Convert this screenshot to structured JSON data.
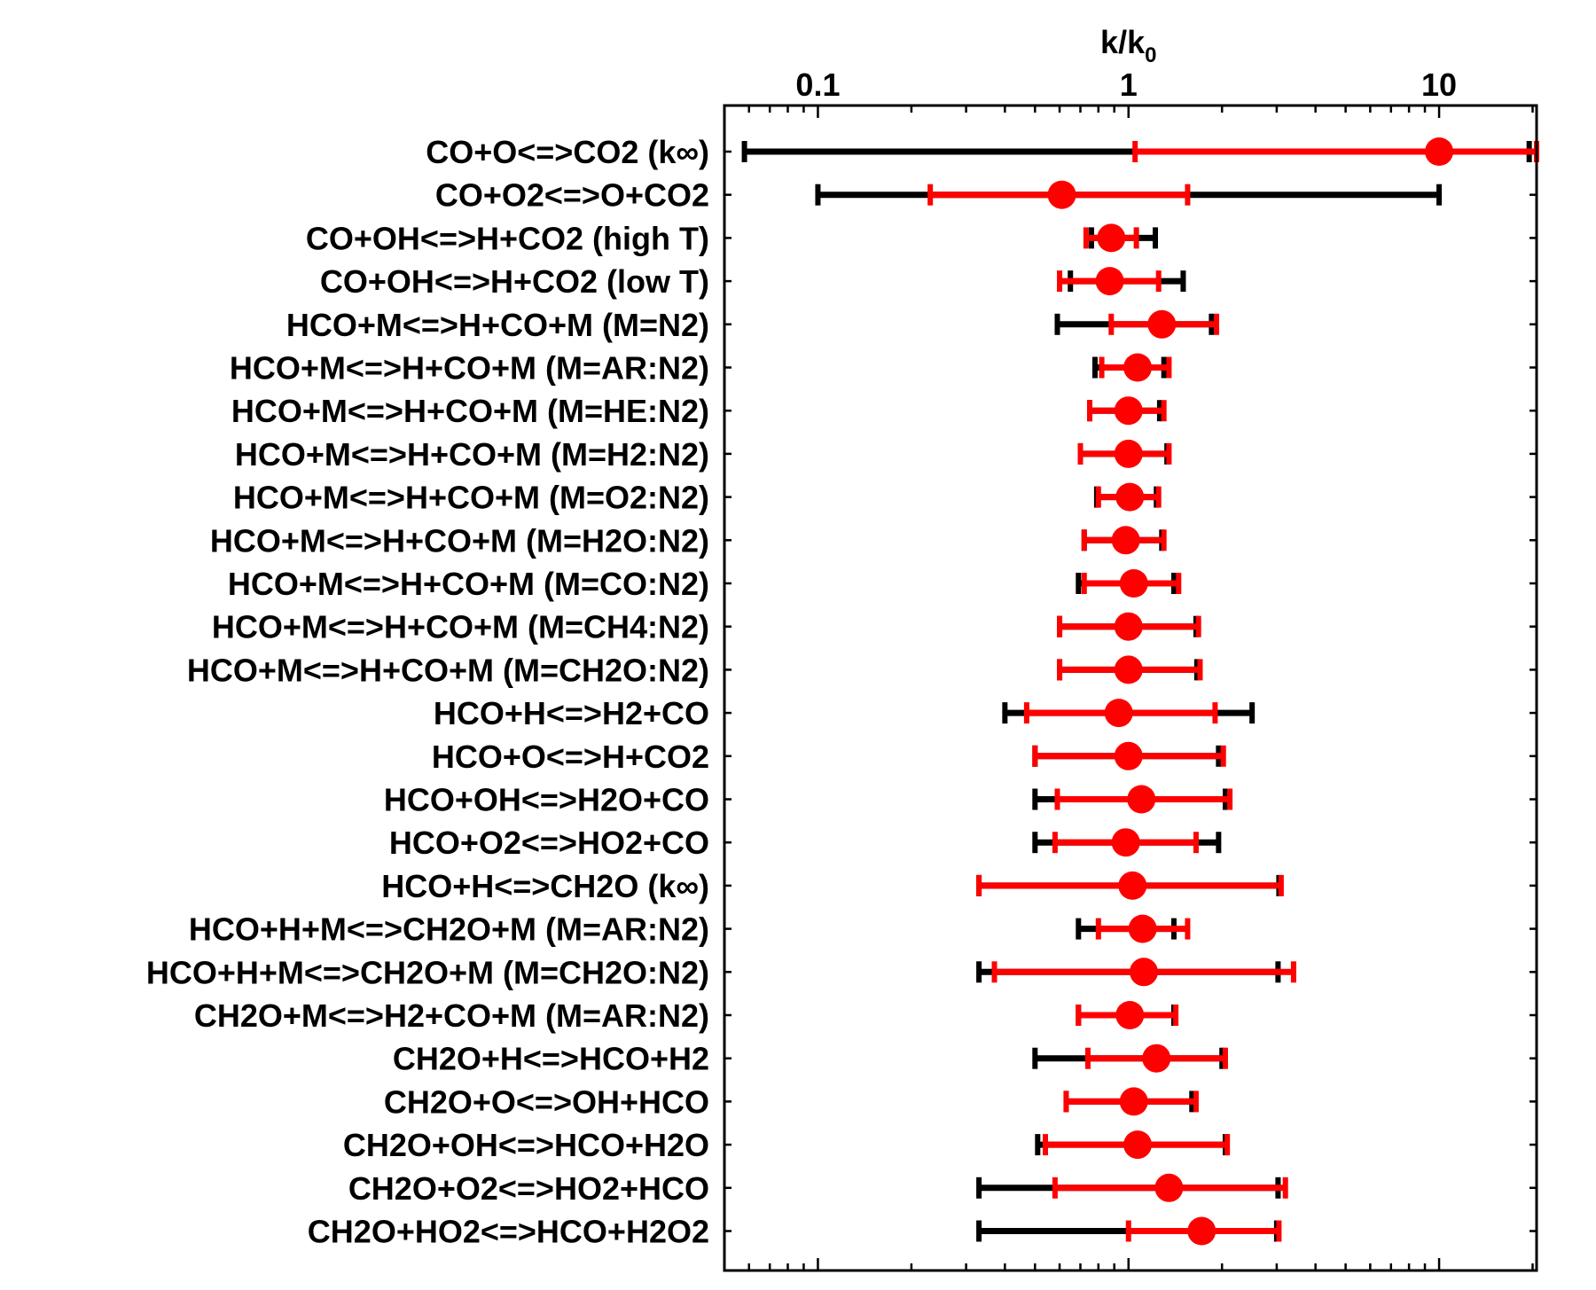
{
  "chart_data": {
    "type": "scatter",
    "title": "",
    "xlabel": "k/k",
    "xlabel_subscript": "0",
    "x_scale": "log",
    "xlim": [
      0.05,
      20.6
    ],
    "x_ticks": [
      0.1,
      1,
      10
    ],
    "x_tick_labels": [
      "0.1",
      "1",
      "10"
    ],
    "x_axis_position": "top",
    "grid": false,
    "colors": {
      "black_range": "#000000",
      "red_range": "#ff0000",
      "point": "#ff0000"
    },
    "categories": [
      "CO+O<=>CO2 (k∞)",
      "CO+O2<=>O+CO2",
      "CO+OH<=>H+CO2 (high T)",
      "CO+OH<=>H+CO2 (low T)",
      "HCO+M<=>H+CO+M (M=N2)",
      "HCO+M<=>H+CO+M (M=AR:N2)",
      "HCO+M<=>H+CO+M (M=HE:N2)",
      "HCO+M<=>H+CO+M (M=H2:N2)",
      "HCO+M<=>H+CO+M (M=O2:N2)",
      "HCO+M<=>H+CO+M (M=H2O:N2)",
      "HCO+M<=>H+CO+M (M=CO:N2)",
      "HCO+M<=>H+CO+M (M=CH4:N2)",
      "HCO+M<=>H+CO+M (M=CH2O:N2)",
      "HCO+H<=>H2+CO",
      "HCO+O<=>H+CO2",
      "HCO+OH<=>H2O+CO",
      "HCO+O2<=>HO2+CO",
      "HCO+H<=>CH2O (k∞)",
      "HCO+H+M<=>CH2O+M (M=AR:N2)",
      "HCO+H+M<=>CH2O+M (M=CH2O:N2)",
      "CH2O+M<=>H2+CO+M (M=AR:N2)",
      "CH2O+H<=>HCO+H2",
      "CH2O+O<=>OH+HCO",
      "CH2O+OH<=>HCO+H2O",
      "CH2O+O2<=>HO2+HCO",
      "CH2O+HO2<=>HCO+H2O2"
    ],
    "series": [
      {
        "role": "black_range",
        "low": [
          0.058,
          0.1,
          0.76,
          0.65,
          0.59,
          0.78,
          0.75,
          0.7,
          0.79,
          0.72,
          0.69,
          0.6,
          0.6,
          0.4,
          0.5,
          0.5,
          0.5,
          0.33,
          0.69,
          0.33,
          0.69,
          0.5,
          0.63,
          0.51,
          0.33,
          0.33
        ],
        "high": [
          19.5,
          10.0,
          1.22,
          1.5,
          1.85,
          1.3,
          1.26,
          1.33,
          1.23,
          1.28,
          1.4,
          1.65,
          1.66,
          2.5,
          1.95,
          2.05,
          1.95,
          3.05,
          1.4,
          3.03,
          1.4,
          2.0,
          1.6,
          2.05,
          3.03,
          3.0
        ]
      },
      {
        "role": "red_range",
        "low": [
          1.05,
          0.23,
          0.73,
          0.6,
          0.88,
          0.82,
          0.75,
          0.7,
          0.8,
          0.72,
          0.72,
          0.6,
          0.6,
          0.47,
          0.5,
          0.59,
          0.58,
          0.33,
          0.8,
          0.37,
          0.69,
          0.74,
          0.63,
          0.54,
          0.58,
          1.0
        ],
        "high": [
          20.6,
          1.55,
          1.06,
          1.25,
          1.92,
          1.35,
          1.3,
          1.35,
          1.25,
          1.3,
          1.45,
          1.68,
          1.7,
          1.9,
          2.02,
          2.12,
          1.65,
          3.1,
          1.55,
          3.4,
          1.42,
          2.05,
          1.65,
          2.08,
          3.2,
          3.05
        ]
      },
      {
        "role": "point",
        "values": [
          10.0,
          0.61,
          0.88,
          0.87,
          1.28,
          1.07,
          1.0,
          1.0,
          1.01,
          0.98,
          1.04,
          1.0,
          1.0,
          0.93,
          1.0,
          1.1,
          0.98,
          1.03,
          1.11,
          1.12,
          1.01,
          1.23,
          1.04,
          1.07,
          1.35,
          1.72
        ]
      }
    ]
  }
}
